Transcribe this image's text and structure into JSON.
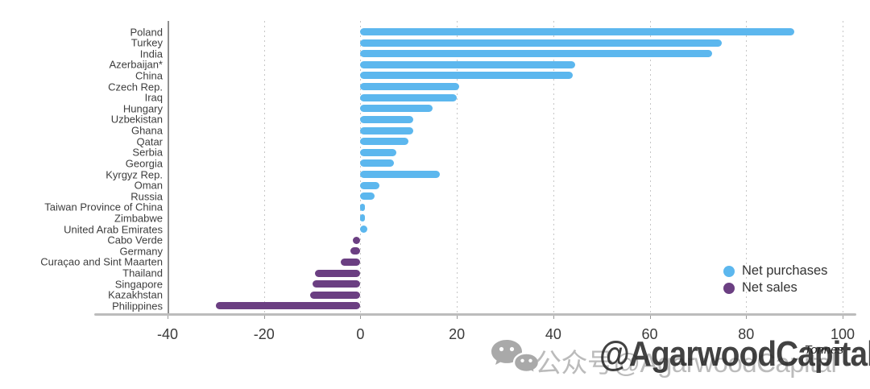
{
  "chart_data": {
    "type": "bar",
    "orientation": "horizontal",
    "title": "",
    "unit_label": "Tonnes",
    "xlim": [
      -40,
      100
    ],
    "x_ticks": [
      -40,
      -20,
      0,
      20,
      40,
      60,
      80,
      100
    ],
    "grid": "vertical-dotted",
    "categories": [
      "Poland",
      "Turkey",
      "India",
      "Azerbaijan*",
      "China",
      "Czech Rep.",
      "Iraq",
      "Hungary",
      "Uzbekistan",
      "Ghana",
      "Qatar",
      "Serbia",
      "Georgia",
      "Kyrgyz Rep.",
      "Oman",
      "Russia",
      "Taiwan Province of China",
      "Zimbabwe",
      "United Arab Emirates",
      "Cabo Verde",
      "Germany",
      "Curaçao and Sint Maarten",
      "Thailand",
      "Singapore",
      "Kazakhstan",
      "Philippines"
    ],
    "values": [
      90,
      75,
      73,
      44.5,
      44,
      20.5,
      20,
      15,
      11,
      11,
      10,
      7.5,
      7,
      16.5,
      4,
      3,
      1,
      1,
      1.5,
      -1.5,
      -2,
      -4,
      -9.5,
      -10,
      -10.5,
      -30
    ],
    "series_rule": "positive values = Net purchases (blue), negative values = Net sales (purple)",
    "colors": {
      "net_purchases": "#5CB7EE",
      "net_sales": "#6B3F82"
    },
    "legend": [
      {
        "label": "Net purchases",
        "color": "#5CB7EE"
      },
      {
        "label": "Net sales",
        "color": "#6B3F82"
      }
    ],
    "legend_position": "right-middle-lower"
  },
  "watermark": {
    "wechat_icon": "wechat-icon",
    "gray_text": "公众号@AgarwoodCapital",
    "bold_text": "@AgarwoodCapital"
  }
}
